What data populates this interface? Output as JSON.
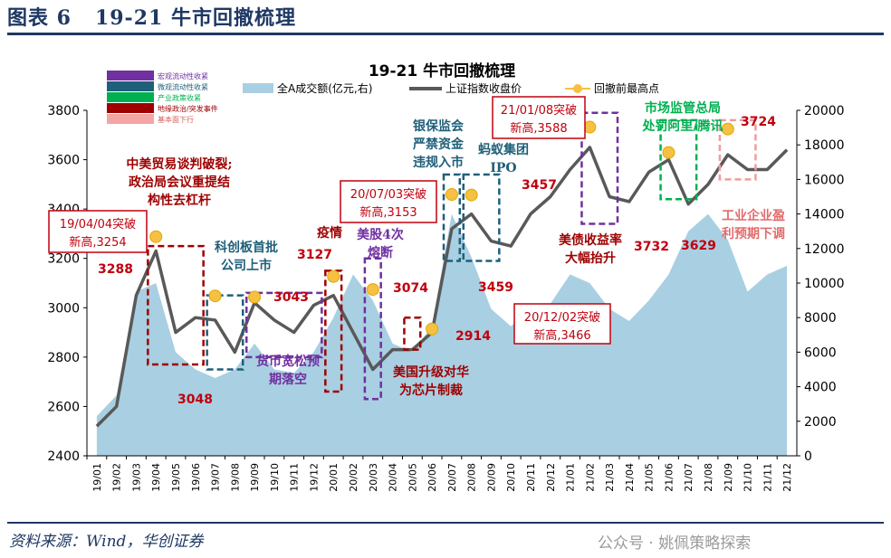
{
  "figure_title": "图表 6   19-21 牛市回撤梳理",
  "source": "资料来源：Wind，华创证券",
  "watermark": "公众号 · 姚佩策略探索",
  "colors": {
    "line": "#595959",
    "area": "#a9cfe2",
    "marker": "#f6c142",
    "red": "#c0000e",
    "dark_red": "#9e0000",
    "purple": "#7030a0",
    "blue": "#2e75b6",
    "teal": "#1f5f7a",
    "green": "#00b050",
    "pink": "#f19c9c",
    "navy": "#1f3864"
  },
  "chart_data": {
    "type": "line",
    "title": "19-21 牛市回撤梳理",
    "y_left": {
      "min": 2400,
      "max": 3800,
      "ticks": [
        2400,
        2600,
        2800,
        3000,
        3200,
        3400,
        3600,
        3800
      ]
    },
    "y_right": {
      "min": 0,
      "max": 20000,
      "ticks": [
        0,
        2000,
        4000,
        6000,
        8000,
        10000,
        12000,
        14000,
        16000,
        18000,
        20000
      ]
    },
    "x_ticks": [
      "19/01",
      "19/02",
      "19/03",
      "19/04",
      "19/05",
      "19/06",
      "19/07",
      "19/08",
      "19/09",
      "19/10",
      "19/11",
      "19/12",
      "20/01",
      "20/02",
      "20/03",
      "20/04",
      "20/05",
      "20/06",
      "20/07",
      "20/08",
      "20/09",
      "20/10",
      "20/11",
      "20/12",
      "21/01",
      "21/02",
      "21/03",
      "21/04",
      "21/05",
      "21/06",
      "21/07",
      "21/08",
      "21/09",
      "21/10",
      "21/11",
      "21/12"
    ],
    "series": [
      {
        "name": "全A成交额(亿元,右)",
        "kind": "area",
        "axis": "right",
        "x": [
          "19/01",
          "19/02",
          "19/03",
          "19/04",
          "19/05",
          "19/06",
          "19/07",
          "19/08",
          "19/09",
          "19/10",
          "19/11",
          "19/12",
          "20/01",
          "20/02",
          "20/03",
          "20/04",
          "20/05",
          "20/06",
          "20/07",
          "20/08",
          "20/09",
          "20/10",
          "20/11",
          "20/12",
          "21/01",
          "21/02",
          "21/03",
          "21/04",
          "21/05",
          "21/06",
          "21/07",
          "21/08",
          "21/09",
          "21/10",
          "21/11",
          "21/12"
        ],
        "values": [
          2300,
          3500,
          9500,
          10000,
          6000,
          5000,
          4500,
          5000,
          6500,
          5000,
          4800,
          6000,
          8000,
          10500,
          9000,
          6500,
          6000,
          7500,
          14000,
          11500,
          8500,
          7500,
          8500,
          8800,
          10500,
          10000,
          8500,
          7800,
          9000,
          10500,
          13000,
          14000,
          12500,
          9500,
          10500,
          11000
        ]
      },
      {
        "name": "上证指数收盘价",
        "kind": "line",
        "axis": "left",
        "x": [
          "19/01",
          "19/02",
          "19/03",
          "19/04",
          "19/05",
          "19/06",
          "19/07",
          "19/08",
          "19/09",
          "19/10",
          "19/11",
          "19/12",
          "20/01",
          "20/02",
          "20/03",
          "20/04",
          "20/05",
          "20/06",
          "20/07",
          "20/08",
          "20/09",
          "20/10",
          "20/11",
          "20/12",
          "21/01",
          "21/02",
          "21/03",
          "21/04",
          "21/05",
          "21/06",
          "21/07",
          "21/08",
          "21/09",
          "21/10",
          "21/11",
          "21/12"
        ],
        "values": [
          2520,
          2600,
          3050,
          3230,
          2900,
          2960,
          2950,
          2820,
          3020,
          2950,
          2900,
          3010,
          3050,
          2900,
          2750,
          2830,
          2830,
          2900,
          3320,
          3380,
          3270,
          3250,
          3380,
          3450,
          3560,
          3650,
          3450,
          3430,
          3550,
          3600,
          3420,
          3500,
          3620,
          3560,
          3560,
          3640
        ]
      },
      {
        "name": "回撤前最高点",
        "kind": "marker",
        "axis": "left",
        "x": [
          "19/04",
          "19/07",
          "19/09",
          "20/01",
          "20/03",
          "20/06",
          "20/07",
          "20/08",
          "21/02",
          "21/06",
          "21/09"
        ],
        "values": [
          3288,
          3048,
          3043,
          3127,
          3074,
          2914,
          3459,
          3457,
          3732,
          3629,
          3724
        ]
      }
    ],
    "legend": {
      "placement": "top",
      "entries": [
        "全A成交额(亿元,右)",
        "上证指数收盘价",
        "回撤前最高点"
      ]
    },
    "swatch_legend": [
      "宏观流动性收紧",
      "微观流动性收紧",
      "产业政策收紧",
      "地缘政治/突发事件",
      "基本面下行"
    ],
    "peak_labels": [
      "3288",
      "3048",
      "3043",
      "3127",
      "3074",
      "2914",
      "3459",
      "3457",
      "3732",
      "3629",
      "3724"
    ],
    "callouts": [
      "19/04/04突破\n新高,3254",
      "20/07/03突破\n新高,3153",
      "21/01/08突破\n新高,3588",
      "20/12/02突破\n新高,3466"
    ],
    "annotations": [
      "中美贸易谈判破裂;\n政治局会议重提结\n构性去杠杆",
      "科创板首批\n公司上市",
      "货币宽松预\n期落空",
      "疫情",
      "美股4次\n熔断",
      "美国升级对华\n为芯片制裁",
      "银保监会\n严禁资金\n违规入市",
      "蚂蚁集团\nIPO",
      "美债收益率\n大幅抬升",
      "市场监管总局\n处罚阿里/腾讯",
      "工业企业盈\n利预期下调"
    ]
  }
}
